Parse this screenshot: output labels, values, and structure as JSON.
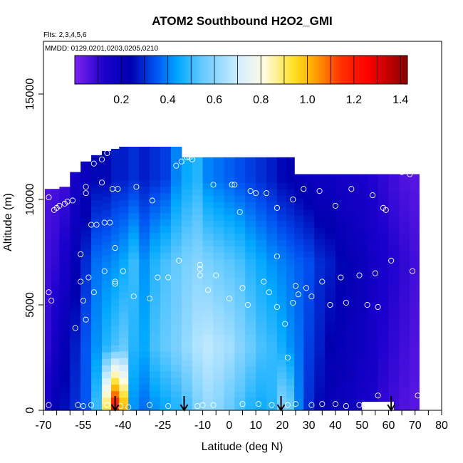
{
  "chart_data": {
    "type": "heatmap",
    "title": "ATOM2 Southbound H2O2_GMI",
    "subtitle_flights": "Flts: 2,3,4,5,6",
    "subtitle_dates": "MMDD: 0129,0201,0203,0205,0210",
    "xlabel": "Latitude (deg N)",
    "ylabel": "Altitude (m)",
    "xlim": [
      -70,
      80
    ],
    "ylim": [
      0,
      17500
    ],
    "x_ticks": [
      "-70",
      "-55",
      "-40",
      "-25",
      "-10",
      "0",
      "10",
      "20",
      "30",
      "40",
      "50",
      "60",
      "70",
      "80"
    ],
    "x_tick_values": [
      -70,
      -55,
      -40,
      -25,
      -10,
      0,
      10,
      20,
      30,
      40,
      50,
      60,
      70,
      80
    ],
    "x_minor_ticks": [
      -65,
      -60,
      -50,
      -45,
      -35,
      -30,
      -20,
      -15,
      -5,
      5,
      15,
      25,
      35,
      45,
      55,
      65,
      75
    ],
    "y_ticks": [
      "0",
      "5000",
      "10000",
      "15000"
    ],
    "y_tick_values": [
      0,
      5000,
      10000,
      15000
    ],
    "colorbar": {
      "range": [
        0,
        1.43
      ],
      "tick_labels": [
        "0.2",
        "0.4",
        "0.6",
        "0.8",
        "1.0",
        "1.2",
        "1.4"
      ],
      "tick_values": [
        0.2,
        0.4,
        0.6,
        0.8,
        1.0,
        1.2,
        1.4
      ],
      "colors": [
        "#7d22f0",
        "#1a00cc",
        "#0000b0",
        "#0050f0",
        "#00a8ff",
        "#60c8ff",
        "#d8f0ff",
        "#fffbe0",
        "#ffe020",
        "#ffa500",
        "#ff3000",
        "#ff0000",
        "#8b0000"
      ],
      "stops": [
        0,
        0.09,
        0.17,
        0.24,
        0.31,
        0.38,
        0.5,
        0.57,
        0.66,
        0.72,
        0.8,
        0.88,
        1.0
      ]
    },
    "columns": [
      {
        "lat": -68,
        "top": 10500,
        "vals": [
          0.15,
          0.1,
          0.08,
          0.06
        ]
      },
      {
        "lat": -66,
        "top": 10500,
        "vals": [
          0.22,
          0.16,
          0.1,
          0.07
        ]
      },
      {
        "lat": -62,
        "top": 10600,
        "vals": [
          0.26,
          0.22,
          0.14,
          0.08
        ]
      },
      {
        "lat": -58,
        "top": 11300,
        "vals": [
          0.3,
          0.28,
          0.22,
          0.15
        ]
      },
      {
        "lat": -54,
        "top": 11800,
        "vals": [
          0.35,
          0.35,
          0.3,
          0.2
        ]
      },
      {
        "lat": -50,
        "top": 12100,
        "vals": [
          0.5,
          0.42,
          0.38,
          0.25
        ]
      },
      {
        "lat": -46,
        "top": 12300,
        "vals": [
          0.9,
          0.48,
          0.4,
          0.25
        ]
      },
      {
        "lat": -43,
        "top": 12400,
        "vals": [
          1.2,
          0.52,
          0.42,
          0.28
        ]
      },
      {
        "lat": -40,
        "top": 12500,
        "vals": [
          1.0,
          0.55,
          0.45,
          0.28
        ]
      },
      {
        "lat": -36,
        "top": 12500,
        "vals": [
          0.42,
          0.48,
          0.5,
          0.3
        ]
      },
      {
        "lat": -32,
        "top": 12500,
        "vals": [
          0.38,
          0.45,
          0.42,
          0.28
        ]
      },
      {
        "lat": -28,
        "top": 12500,
        "vals": [
          0.42,
          0.52,
          0.48,
          0.3
        ]
      },
      {
        "lat": -24,
        "top": 12500,
        "vals": [
          0.45,
          0.55,
          0.52,
          0.32
        ]
      },
      {
        "lat": -20,
        "top": 12500,
        "vals": [
          0.48,
          0.58,
          0.55,
          0.4
        ]
      },
      {
        "lat": -16,
        "top": 12000,
        "vals": [
          0.52,
          0.62,
          0.58,
          0.45
        ]
      },
      {
        "lat": -12,
        "top": 12000,
        "vals": [
          0.58,
          0.66,
          0.6,
          0.48
        ]
      },
      {
        "lat": -8,
        "top": 12000,
        "vals": [
          0.62,
          0.68,
          0.58,
          0.4
        ]
      },
      {
        "lat": -4,
        "top": 12000,
        "vals": [
          0.6,
          0.66,
          0.56,
          0.38
        ]
      },
      {
        "lat": 0,
        "top": 12000,
        "vals": [
          0.56,
          0.64,
          0.54,
          0.36
        ]
      },
      {
        "lat": 4,
        "top": 12000,
        "vals": [
          0.52,
          0.6,
          0.52,
          0.34
        ]
      },
      {
        "lat": 8,
        "top": 12000,
        "vals": [
          0.48,
          0.56,
          0.48,
          0.32
        ]
      },
      {
        "lat": 12,
        "top": 12000,
        "vals": [
          0.46,
          0.52,
          0.45,
          0.3
        ]
      },
      {
        "lat": 16,
        "top": 12000,
        "vals": [
          0.48,
          0.5,
          0.42,
          0.28
        ]
      },
      {
        "lat": 20,
        "top": 12000,
        "vals": [
          0.58,
          0.46,
          0.4,
          0.25
        ]
      },
      {
        "lat": 23,
        "top": 12000,
        "vals": [
          0.55,
          0.42,
          0.38,
          0.24
        ]
      },
      {
        "lat": 26,
        "top": 11200,
        "vals": [
          0.4,
          0.38,
          0.36,
          0.22
        ]
      },
      {
        "lat": 30,
        "top": 11200,
        "vals": [
          0.3,
          0.32,
          0.34,
          0.2
        ]
      },
      {
        "lat": 34,
        "top": 11200,
        "vals": [
          0.25,
          0.28,
          0.3,
          0.18
        ]
      },
      {
        "lat": 38,
        "top": 11200,
        "vals": [
          0.22,
          0.24,
          0.28,
          0.18
        ]
      },
      {
        "lat": 42,
        "top": 11200,
        "vals": [
          0.2,
          0.22,
          0.25,
          0.16
        ]
      },
      {
        "lat": 46,
        "top": 11200,
        "vals": [
          0.18,
          0.2,
          0.22,
          0.15
        ]
      },
      {
        "lat": 50,
        "top": 11200,
        "vals": [
          0.15,
          0.18,
          0.2,
          0.14
        ]
      },
      {
        "lat": 54,
        "top": 11200,
        "vals": [
          0.14,
          0.15,
          0.16,
          0.12
        ]
      },
      {
        "lat": 58,
        "top": 11200,
        "vals": [
          0.1,
          0.12,
          0.14,
          0.1
        ]
      },
      {
        "lat": 62,
        "top": 11200,
        "vals": [
          0.08,
          0.1,
          0.12,
          0.08
        ]
      },
      {
        "lat": 66,
        "top": 11200,
        "vals": [
          0.06,
          0.08,
          0.1,
          0.06
        ]
      },
      {
        "lat": 70,
        "top": 11200,
        "vals": [
          0.05,
          0.06,
          0.08,
          0.05
        ]
      }
    ],
    "column_value_altitudes": [
      300,
      3000,
      7000,
      11000
    ],
    "points": [
      {
        "x": -68,
        "y": 10100
      },
      {
        "x": -66,
        "y": 9500
      },
      {
        "x": -65,
        "y": 9600
      },
      {
        "x": -64,
        "y": 9700
      },
      {
        "x": -62,
        "y": 9800
      },
      {
        "x": -61,
        "y": 9900
      },
      {
        "x": -59,
        "y": 9950
      },
      {
        "x": -54,
        "y": 10600
      },
      {
        "x": -54,
        "y": 10300
      },
      {
        "x": -51,
        "y": 11700
      },
      {
        "x": -48,
        "y": 11900
      },
      {
        "x": -46,
        "y": 12200
      },
      {
        "x": -48,
        "y": 10800
      },
      {
        "x": -44,
        "y": 10500
      },
      {
        "x": -42,
        "y": 10500
      },
      {
        "x": -35,
        "y": 10600
      },
      {
        "x": -29,
        "y": 9950
      },
      {
        "x": -52,
        "y": 8800
      },
      {
        "x": -50,
        "y": 8800
      },
      {
        "x": -47,
        "y": 8900
      },
      {
        "x": -45,
        "y": 8900
      },
      {
        "x": -43,
        "y": 7700
      },
      {
        "x": -20,
        "y": 11600
      },
      {
        "x": -18,
        "y": 11800
      },
      {
        "x": -16,
        "y": 12000
      },
      {
        "x": -15,
        "y": 12000
      },
      {
        "x": -14,
        "y": 11900
      },
      {
        "x": -6,
        "y": 10700
      },
      {
        "x": 1,
        "y": 10700
      },
      {
        "x": 2,
        "y": 10700
      },
      {
        "x": 4,
        "y": 9400
      },
      {
        "x": 8,
        "y": 10400
      },
      {
        "x": 10,
        "y": 10300
      },
      {
        "x": 14,
        "y": 10300
      },
      {
        "x": 18,
        "y": 9600
      },
      {
        "x": 24,
        "y": 10000
      },
      {
        "x": 28,
        "y": 10500
      },
      {
        "x": 34,
        "y": 10400
      },
      {
        "x": 40,
        "y": 9700
      },
      {
        "x": 46,
        "y": 10500
      },
      {
        "x": 54,
        "y": 10200
      },
      {
        "x": 58,
        "y": 9600
      },
      {
        "x": 59,
        "y": 9500
      },
      {
        "x": 65,
        "y": 11300
      },
      {
        "x": 68,
        "y": 11200
      },
      {
        "x": 61,
        "y": 7100
      },
      {
        "x": 69,
        "y": 6600
      },
      {
        "x": -56,
        "y": 7400
      },
      {
        "x": -68,
        "y": 5600
      },
      {
        "x": -67,
        "y": 5200
      },
      {
        "x": -56,
        "y": 6100
      },
      {
        "x": -53,
        "y": 6300
      },
      {
        "x": -51,
        "y": 5600
      },
      {
        "x": -47,
        "y": 6600
      },
      {
        "x": -43,
        "y": 6100
      },
      {
        "x": -43,
        "y": 6000
      },
      {
        "x": -40,
        "y": 6600
      },
      {
        "x": -36,
        "y": 5400
      },
      {
        "x": -30,
        "y": 5300
      },
      {
        "x": -27,
        "y": 6300
      },
      {
        "x": -23,
        "y": 6300
      },
      {
        "x": -19,
        "y": 7100
      },
      {
        "x": -11,
        "y": 6900
      },
      {
        "x": -11,
        "y": 6700
      },
      {
        "x": -11,
        "y": 6400
      },
      {
        "x": -5,
        "y": 6400
      },
      {
        "x": -8,
        "y": 5700
      },
      {
        "x": 0,
        "y": 5300
      },
      {
        "x": 5,
        "y": 5800
      },
      {
        "x": 7,
        "y": 5000
      },
      {
        "x": 13,
        "y": 6100
      },
      {
        "x": 15,
        "y": 5600
      },
      {
        "x": 18,
        "y": 4900
      },
      {
        "x": 18,
        "y": 7300
      },
      {
        "x": 24,
        "y": 5100
      },
      {
        "x": 25,
        "y": 5900
      },
      {
        "x": 26,
        "y": 5500
      },
      {
        "x": 29,
        "y": 5800
      },
      {
        "x": 31,
        "y": 5400
      },
      {
        "x": 35,
        "y": 6100
      },
      {
        "x": 38,
        "y": 5000
      },
      {
        "x": 42,
        "y": 6300
      },
      {
        "x": 44,
        "y": 5100
      },
      {
        "x": 49,
        "y": 6400
      },
      {
        "x": 52,
        "y": 5000
      },
      {
        "x": 55,
        "y": 6500
      },
      {
        "x": 56,
        "y": 4900
      },
      {
        "x": -55,
        "y": 5200
      },
      {
        "x": -54,
        "y": 4300
      },
      {
        "x": -58,
        "y": 3900
      },
      {
        "x": 21,
        "y": 4100
      },
      {
        "x": 22,
        "y": 2500
      },
      {
        "x": -68,
        "y": 250
      },
      {
        "x": -57,
        "y": 250
      },
      {
        "x": -55,
        "y": 200
      },
      {
        "x": -52,
        "y": 250
      },
      {
        "x": -46,
        "y": 250
      },
      {
        "x": -41,
        "y": 200
      },
      {
        "x": -38,
        "y": 150
      },
      {
        "x": -30,
        "y": 250
      },
      {
        "x": -23,
        "y": 200
      },
      {
        "x": -12,
        "y": 200
      },
      {
        "x": -10,
        "y": 250
      },
      {
        "x": -6,
        "y": 250
      },
      {
        "x": 5,
        "y": 300
      },
      {
        "x": 11,
        "y": 300
      },
      {
        "x": 16,
        "y": 250
      },
      {
        "x": 22,
        "y": 250
      },
      {
        "x": 25,
        "y": 300
      },
      {
        "x": 31,
        "y": 250
      },
      {
        "x": 35,
        "y": 300
      },
      {
        "x": 40,
        "y": 300
      },
      {
        "x": 44,
        "y": 200
      },
      {
        "x": 49,
        "y": 250
      },
      {
        "x": 56,
        "y": 700
      },
      {
        "x": 71,
        "y": 700
      }
    ],
    "arrows_lat": [
      -43,
      -17,
      19.5,
      61
    ]
  }
}
